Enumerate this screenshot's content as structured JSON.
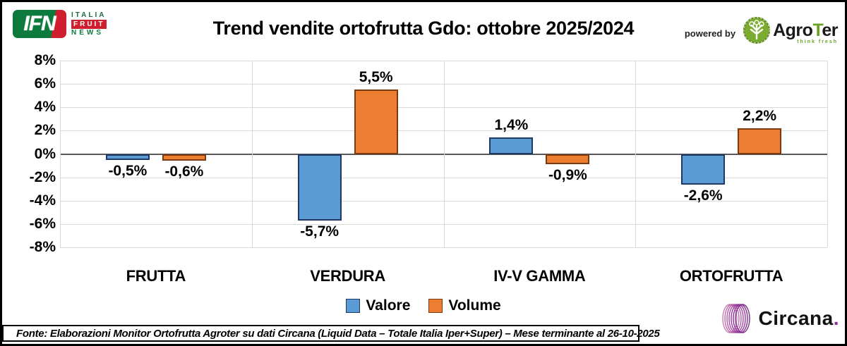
{
  "header": {
    "title": "Trend vendite ortofrutta Gdo: ottobre 2025/2024",
    "ifn_logo": {
      "acronym": "IFN",
      "line1": "ITALIA",
      "line2": "FRUIT",
      "line3": "NEWS"
    },
    "powered_by": "powered by",
    "agroter": {
      "name_prefix": "Agro",
      "name_t": "T",
      "name_suffix": "er",
      "tagline": "think fresh"
    }
  },
  "chart_data": {
    "type": "bar",
    "title": "Trend vendite ortofrutta Gdo: ottobre 2025/2024",
    "categories": [
      "FRUTTA",
      "VERDURA",
      "IV-V GAMMA",
      "ORTOFRUTTA"
    ],
    "series": [
      {
        "name": "Valore",
        "color": "#5b9bd5",
        "border_color": "#1f3864",
        "values": [
          -0.5,
          -5.7,
          1.4,
          -2.6
        ],
        "labels": [
          "-0,5%",
          "-5,7%",
          "1,4%",
          "-2,6%"
        ]
      },
      {
        "name": "Volume",
        "color": "#ed7d31",
        "border_color": "#7b3a10",
        "values": [
          -0.6,
          5.5,
          -0.9,
          2.2
        ],
        "labels": [
          "-0,6%",
          "5,5%",
          "-0,9%",
          "2,2%"
        ]
      }
    ],
    "ylim": [
      -8,
      8
    ],
    "y_ticks": [
      {
        "value": 8,
        "label": "8%"
      },
      {
        "value": 6,
        "label": "6%"
      },
      {
        "value": 4,
        "label": "4%"
      },
      {
        "value": 2,
        "label": "2%"
      },
      {
        "value": 0,
        "label": "0%"
      },
      {
        "value": -2,
        "label": "-2%"
      },
      {
        "value": -4,
        "label": "-4%"
      },
      {
        "value": -6,
        "label": "-6%"
      },
      {
        "value": -8,
        "label": "-8%"
      }
    ],
    "grid": true,
    "legend_position": "bottom",
    "grid_color": "#d9d9d9",
    "zero_line_color": "#595959"
  },
  "footer": {
    "source": "Fonte: Elaborazioni Monitor Ortofrutta Agroter su dati Circana (Liquid Data – Totale Italia Iper+Super) – Mese terminante al 26-10-2025"
  },
  "circana": {
    "name": "Circana",
    "dot": "."
  }
}
